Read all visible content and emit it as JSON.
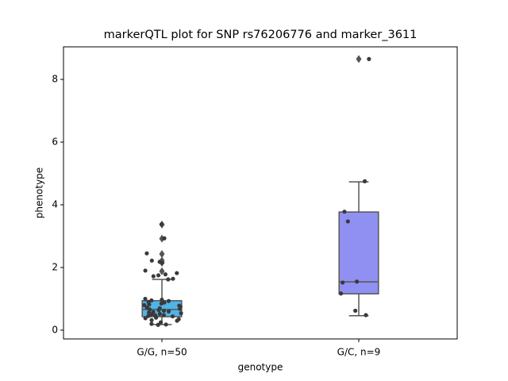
{
  "chart_data": {
    "type": "box",
    "title": "markerQTL plot for SNP rs76206776 and marker_3611",
    "x_label": "genotype",
    "y_label": "phenotype",
    "categories": [
      "G/G, n=50",
      "G/C, n=9"
    ],
    "ylim": [
      -0.28,
      9.04
    ],
    "yticks": [
      0,
      2,
      4,
      6,
      8
    ],
    "edge_color": "#555555",
    "point_color": "#3a3a3a",
    "boxes": [
      {
        "color": "#4fb4e8",
        "q1": 0.43,
        "median": 0.66,
        "q3": 0.94,
        "whislo": 0.18,
        "whishi": 1.62,
        "fliers": [
          3.37,
          2.92,
          2.43,
          2.22,
          2.15,
          1.88
        ]
      },
      {
        "color": "#9090f2",
        "q1": 1.16,
        "median": 1.54,
        "q3": 3.77,
        "whislo": 0.46,
        "whishi": 4.73,
        "fliers": [
          8.65
        ]
      }
    ],
    "points": [
      [
        3.38,
        2.93,
        2.45,
        2.22,
        2.18,
        2.15,
        1.9,
        1.82,
        1.78,
        1.75,
        1.72,
        1.64,
        1.62,
        1.0,
        0.97,
        0.95,
        0.93,
        0.9,
        0.88,
        0.85,
        0.82,
        0.8,
        0.78,
        0.75,
        0.72,
        0.7,
        0.68,
        0.66,
        0.64,
        0.62,
        0.6,
        0.58,
        0.56,
        0.54,
        0.52,
        0.5,
        0.48,
        0.47,
        0.45,
        0.44,
        0.42,
        0.4,
        0.38,
        0.35,
        0.32,
        0.3,
        0.25,
        0.2,
        0.18,
        0.17
      ],
      [
        8.65,
        4.75,
        3.78,
        3.47,
        1.55,
        1.52,
        1.17,
        0.62,
        0.48
      ]
    ]
  }
}
